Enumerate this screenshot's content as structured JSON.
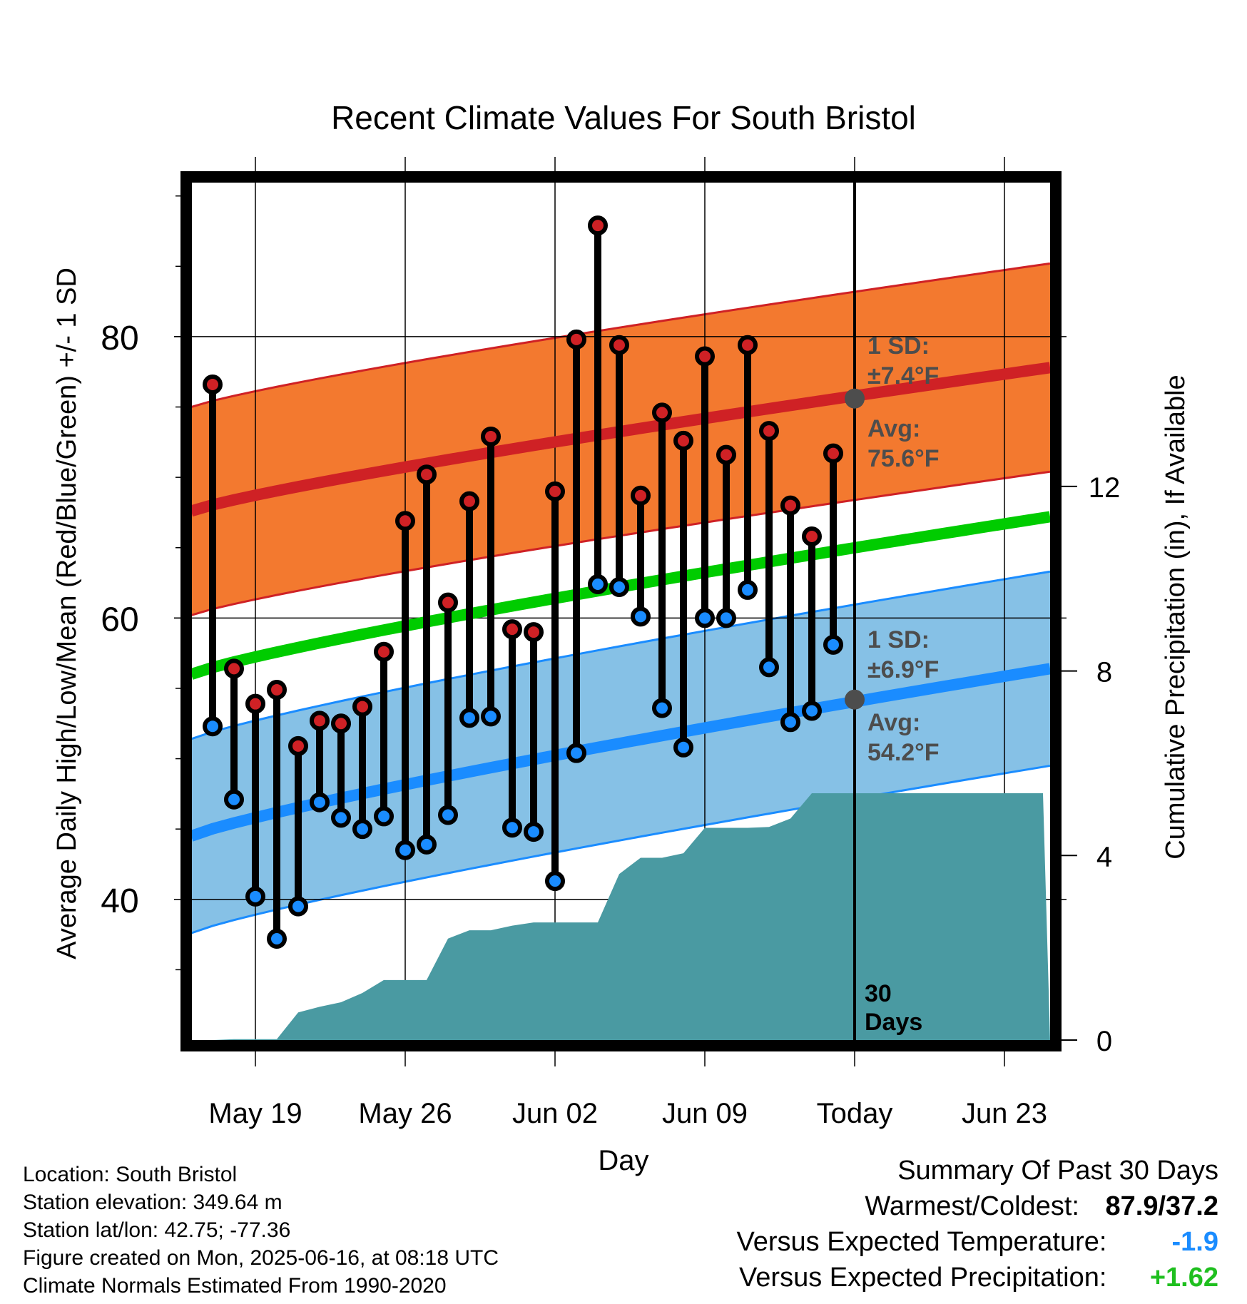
{
  "chart_data": {
    "type": "line",
    "title": "Recent Climate Values For South Bristol",
    "xlabel": "Day",
    "ylabel": "Average Daily High/Low/Mean (Red/Blue/Green) +/- 1 SD",
    "y2label": "Cumulative Precipitation (in), If Available",
    "x_tick_labels": [
      "May 19",
      "May 26",
      "Jun 02",
      "Jun 09",
      "Today",
      "Jun 23"
    ],
    "x_tick_days": [
      3,
      10,
      17,
      24,
      31,
      38
    ],
    "ylim": [
      30,
      91
    ],
    "y_ticks": [
      40,
      60,
      80
    ],
    "y2lim": [
      0,
      18.6
    ],
    "y2_ticks": [
      0,
      4,
      8,
      12
    ],
    "grid": true,
    "today_label": "Today",
    "today_day": 31,
    "period_label": [
      "30",
      "Days"
    ],
    "normals": {
      "high_mean_start": 67.6,
      "high_mean_end": 77.8,
      "high_sd": 7.4,
      "low_mean_start": 44.5,
      "low_mean_end": 56.4,
      "low_sd": 6.9,
      "mean_start": 56.0,
      "mean_end": 67.2
    },
    "annotations": {
      "high_sd_label": "1 SD:",
      "high_sd_value": "±7.4°F",
      "high_avg_label": "Avg:",
      "high_avg_value": "75.6°F",
      "high_avg": 75.6,
      "low_sd_label": "1 SD:",
      "low_sd_value": "±6.9°F",
      "low_avg_label": "Avg:",
      "low_avg_value": "54.2°F",
      "low_avg": 54.2
    },
    "series": [
      {
        "name": "High",
        "days": [
          1,
          2,
          3,
          4,
          5,
          6,
          7,
          8,
          9,
          10,
          11,
          12,
          13,
          14,
          15,
          16,
          17,
          18,
          19,
          20,
          21,
          22,
          23,
          24,
          25,
          26,
          27,
          28,
          29,
          30
        ],
        "values": [
          76.6,
          56.4,
          53.9,
          54.9,
          50.9,
          52.7,
          52.5,
          53.7,
          57.6,
          66.9,
          70.2,
          61.1,
          68.3,
          72.9,
          59.2,
          59.0,
          69.0,
          79.8,
          87.9,
          79.4,
          68.7,
          74.6,
          72.6,
          78.6,
          71.6,
          79.4,
          73.3,
          68.0,
          65.8,
          71.7
        ]
      },
      {
        "name": "Low",
        "days": [
          1,
          2,
          3,
          4,
          5,
          6,
          7,
          8,
          9,
          10,
          11,
          12,
          13,
          14,
          15,
          16,
          17,
          18,
          19,
          20,
          21,
          22,
          23,
          24,
          25,
          26,
          27,
          28,
          29,
          30
        ],
        "values": [
          52.3,
          47.1,
          40.2,
          37.2,
          39.5,
          46.9,
          45.8,
          45.0,
          45.9,
          43.5,
          43.9,
          46.0,
          52.9,
          53.0,
          45.1,
          44.8,
          41.3,
          50.4,
          62.4,
          62.2,
          60.1,
          53.6,
          50.8,
          60.0,
          60.0,
          62.0,
          56.5,
          52.6,
          53.4,
          58.1
        ]
      }
    ],
    "precipitation": {
      "days": [
        0,
        1,
        2,
        3,
        4,
        5,
        6,
        7,
        8,
        9,
        10,
        11,
        12,
        13,
        14,
        15,
        16,
        17,
        18,
        19,
        20,
        21,
        22,
        23,
        24,
        25,
        26,
        27,
        28,
        29,
        30,
        31,
        36,
        39.8
      ],
      "values": [
        0,
        0,
        0.02,
        0.02,
        0.02,
        0.6,
        0.72,
        0.82,
        1.02,
        1.3,
        1.3,
        1.3,
        2.2,
        2.38,
        2.38,
        2.48,
        2.55,
        2.55,
        2.55,
        2.55,
        3.6,
        3.95,
        3.95,
        4.05,
        4.6,
        4.6,
        4.6,
        4.62,
        4.8,
        5.35,
        5.35,
        5.35,
        5.35,
        5.35
      ]
    }
  },
  "footer": {
    "location": "Location: South Bristol",
    "elevation": "Station elevation: 349.64 m",
    "latlon": "Station lat/lon: 42.75; -77.36",
    "created": "Figure created on Mon, 2025-06-16, at 08:18 UTC",
    "normals": "Climate Normals Estimated From 1990-2020"
  },
  "summary": {
    "title": "Summary Of Past 30 Days",
    "warm_cold_label": "Warmest/Coldest:",
    "warm_cold_value": "87.9/37.2",
    "temp_label": "Versus Expected Temperature:",
    "temp_value": "-1.9",
    "precip_label": "Versus Expected Precipitation:",
    "precip_value": "+1.62"
  },
  "colors": {
    "high_band": "#f3792f",
    "high_line": "#cf2125",
    "low_band": "#86c1e6",
    "low_line": "#1a8cff",
    "mean_line": "#00cc00",
    "precip": "#4a9aa2",
    "high_dot": "#cf2125",
    "low_dot": "#1a8cff",
    "annotation": "#4d4d4d",
    "temp_diff": "#1a8cff",
    "precip_diff": "#1fbf1f"
  }
}
